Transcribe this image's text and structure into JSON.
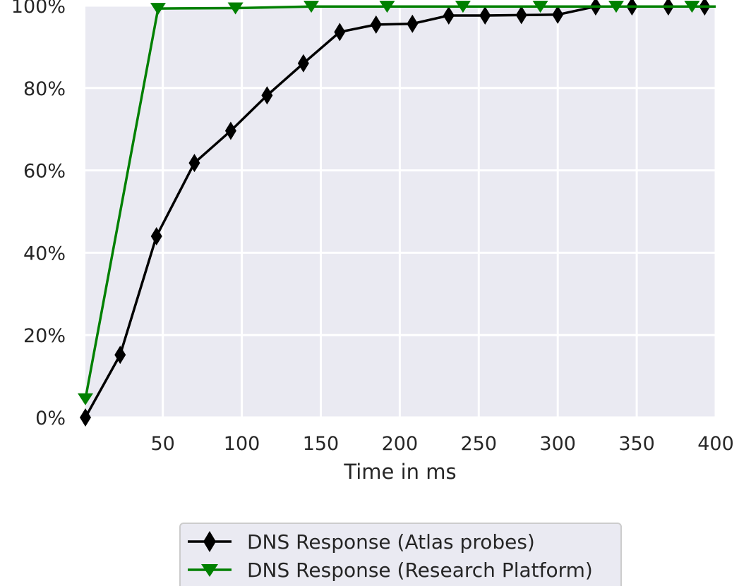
{
  "chart_data": {
    "type": "line",
    "title": "",
    "xlabel": "Time in ms",
    "ylabel": "",
    "xlim": [
      1,
      400
    ],
    "ylim": [
      0,
      100
    ],
    "x_ticks": [
      50,
      100,
      150,
      200,
      250,
      300,
      350,
      400
    ],
    "y_ticks": [
      0,
      20,
      40,
      60,
      80,
      100
    ],
    "y_tick_format": "percent",
    "grid": true,
    "background": "#eaeaf2",
    "legend_position": "below",
    "series": [
      {
        "name": "DNS Response (Atlas probes)",
        "color": "#000000",
        "marker": "thin-diamond",
        "points": [
          [
            1,
            0
          ],
          [
            23,
            15.2
          ],
          [
            46,
            44.0
          ],
          [
            70,
            61.8
          ],
          [
            93,
            69.6
          ],
          [
            116,
            78.2
          ],
          [
            139,
            86.0
          ],
          [
            162,
            93.6
          ],
          [
            185,
            95.4
          ],
          [
            208,
            95.6
          ],
          [
            231,
            97.6
          ],
          [
            254,
            97.6
          ],
          [
            277,
            97.7
          ],
          [
            300,
            97.8
          ],
          [
            324,
            99.8
          ],
          [
            347,
            99.8
          ],
          [
            370,
            99.8
          ],
          [
            393,
            99.8
          ],
          [
            400,
            99.8
          ]
        ]
      },
      {
        "name": "DNS Response (Research Platform)",
        "color": "#008000",
        "marker": "triangle-down",
        "points": [
          [
            1,
            4.5
          ],
          [
            47,
            99.3
          ],
          [
            96,
            99.4
          ],
          [
            144,
            99.8
          ],
          [
            192,
            99.8
          ],
          [
            240,
            99.8
          ],
          [
            289,
            99.8
          ],
          [
            337,
            99.8
          ],
          [
            385,
            99.8
          ],
          [
            400,
            99.8
          ]
        ]
      }
    ]
  }
}
